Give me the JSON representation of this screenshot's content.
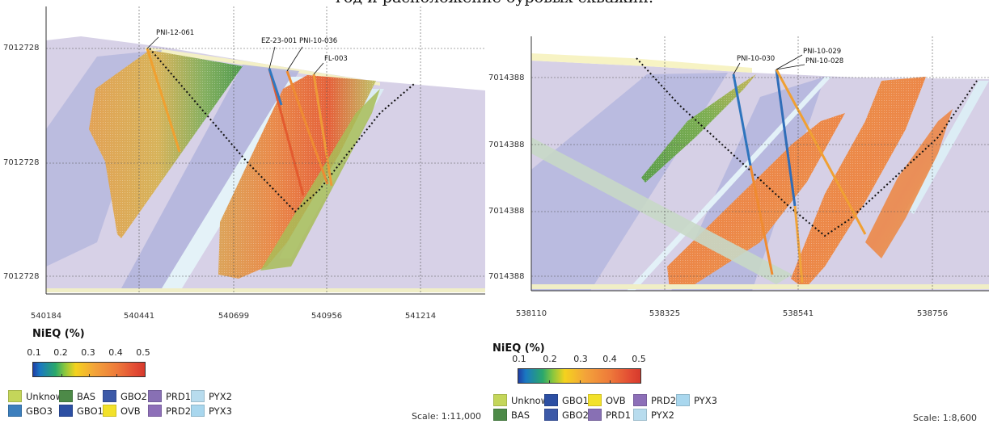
{
  "caption": "год и расположение буровых скважин.",
  "left": {
    "y_labels": [
      "7012728",
      "7012728",
      "7012728"
    ],
    "x_labels": [
      "540184",
      "540441",
      "540699",
      "540956",
      "541214"
    ],
    "holes": [
      "PNI-12-061",
      "EZ-23-001",
      "PNI-10-036",
      "FL-003"
    ],
    "legend_title": "NiEQ (%)",
    "colorbar_ticks": [
      "0.1",
      "0.2",
      "0.3",
      "0.4",
      "0.5"
    ],
    "legend_items": [
      "Unknown",
      "BAS",
      "GBO2",
      "PRD1",
      "PYX2",
      "GBO3",
      "GBO1",
      "OVB",
      "PRD2",
      "PYX3"
    ],
    "legend_colors": [
      "#c4d65a",
      "#4d8a48",
      "#3c59a8",
      "#8870b4",
      "#b8dcee",
      "#3d7fbd",
      "#2c4fa3",
      "#f2e12a",
      "#8d6fb8",
      "#a9d7ee"
    ],
    "scale": "Scale: 1:11,000"
  },
  "right": {
    "y_labels": [
      "7014388",
      "7014388",
      "7014388",
      "7014388"
    ],
    "x_labels": [
      "538110",
      "538325",
      "538541",
      "538756"
    ],
    "holes": [
      "PNI-10-030",
      "PNI-10-029",
      "PNI-10-028"
    ],
    "legend_title": "NiEQ (%)",
    "colorbar_ticks": [
      "0.1",
      "0.2",
      "0.3",
      "0.4",
      "0.5"
    ],
    "legend_items": [
      "Unknown",
      "GBO1",
      "OVB",
      "PRD2",
      "PYX3",
      "BAS",
      "GBO2",
      "PRD1",
      "PYX2"
    ],
    "legend_colors": [
      "#c4d65a",
      "#2c4fa3",
      "#f2e12a",
      "#8d6fb8",
      "#a9d7ee",
      "#4d8a48",
      "#3c59a8",
      "#8870b4",
      "#b8dcee"
    ],
    "scale": "Scale: 1:8,600"
  },
  "colors": {
    "background_rock": "#d6d0e6",
    "gbo_band": "#b7b8de",
    "pyx_band": "#dbeef6",
    "ovb": "#f6f2c7",
    "grade_low": "#4f9a4d",
    "grade_mid": "#e8b04a",
    "grade_high": "#e46a3c",
    "pit_line": "#111111"
  }
}
